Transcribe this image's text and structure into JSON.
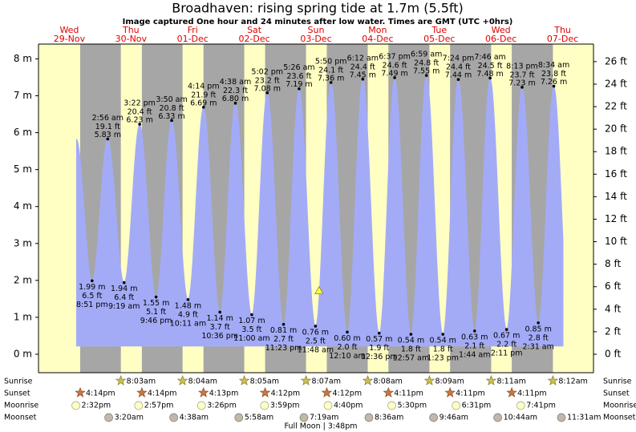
{
  "chart_data": {
    "type": "tide",
    "title": "Broadhaven: rising  spring tide at 1.7m (5.5ft)",
    "subtitle": "Image captured One hour and 24 minutes after low water. Times are GMT (UTC +0hrs)",
    "xlim": [
      0,
      9
    ],
    "ylim": [
      -0.5,
      8.4
    ],
    "yticks": [
      {
        "value": 0,
        "label": "0 m"
      },
      {
        "value": 1,
        "label": "1 m"
      },
      {
        "value": 2,
        "label": "2 m"
      },
      {
        "value": 3,
        "label": "3 m"
      },
      {
        "value": 4,
        "label": "4 m"
      },
      {
        "value": 5,
        "label": "5 m"
      },
      {
        "value": 6,
        "label": "6 m"
      },
      {
        "value": 7,
        "label": "7 m"
      },
      {
        "value": 8,
        "label": "8 m"
      }
    ],
    "y2lim": [
      -1.64,
      27.56
    ],
    "y2ticks": [
      {
        "value": 0,
        "label": "0 ft"
      },
      {
        "value": 2,
        "label": "2 ft"
      },
      {
        "value": 4,
        "label": "4 ft"
      },
      {
        "value": 6,
        "label": "6 ft"
      },
      {
        "value": 8,
        "label": "8 ft"
      },
      {
        "value": 10,
        "label": "10 ft"
      },
      {
        "value": 12,
        "label": "12 ft"
      },
      {
        "value": 14,
        "label": "14 ft"
      },
      {
        "value": 16,
        "label": "16 ft"
      },
      {
        "value": 18,
        "label": "18 ft"
      },
      {
        "value": 20,
        "label": "20 ft"
      },
      {
        "value": 22,
        "label": "22 ft"
      },
      {
        "value": 24,
        "label": "24 ft"
      },
      {
        "value": 26,
        "label": "26 ft"
      }
    ],
    "colors": {
      "tide": "#a3abf7",
      "day": "#ffffc4",
      "night": "#a6a6a6",
      "header": "#e00000"
    },
    "now": {
      "x": 4.55,
      "height": 1.7
    },
    "row_labels": {
      "sunrise": "Sunrise",
      "sunset": "Sunset",
      "moonrise": "Moonrise",
      "moonset": "Moonset"
    },
    "full_moon": "Full Moon | 3:48pm",
    "days": [
      {
        "weekday": "Wed",
        "date": "29-Nov",
        "sunrise": null,
        "sunset": "4:14pm",
        "moonrise": "2:32pm",
        "moonset": null,
        "tides": [
          {
            "type": "low",
            "time": "8:51 pm",
            "height": 1.99,
            "height_label": "1.99 m",
            "ft_label": "6.5 ft"
          }
        ]
      },
      {
        "weekday": "Thu",
        "date": "30-Nov",
        "sunrise": "8:03am",
        "sunset": "4:14pm",
        "moonrise": "2:57pm",
        "moonset": "3:20am",
        "tides": [
          {
            "type": "high",
            "time": "2:56 am",
            "height": 5.83,
            "height_label": "5.83 m",
            "ft_label": "19.1 ft"
          },
          {
            "type": "low",
            "time": "9:19 am",
            "height": 1.94,
            "height_label": "1.94 m",
            "ft_label": "6.4 ft"
          },
          {
            "type": "high",
            "time": "3:22 pm",
            "height": 6.23,
            "height_label": "6.23 m",
            "ft_label": "20.4 ft"
          },
          {
            "type": "low",
            "time": "9:46 pm",
            "height": 1.55,
            "height_label": "1.55 m",
            "ft_label": "5.1 ft"
          }
        ]
      },
      {
        "weekday": "Fri",
        "date": "01-Dec",
        "sunrise": "8:04am",
        "sunset": "4:13pm",
        "moonrise": "3:26pm",
        "moonset": "4:38am",
        "tides": [
          {
            "type": "high",
            "time": "3:50 am",
            "height": 6.33,
            "height_label": "6.33 m",
            "ft_label": "20.8 ft"
          },
          {
            "type": "low",
            "time": "10:11 am",
            "height": 1.48,
            "height_label": "1.48 m",
            "ft_label": "4.9 ft"
          },
          {
            "type": "high",
            "time": "4:14 pm",
            "height": 6.69,
            "height_label": "6.69 m",
            "ft_label": "21.9 ft"
          },
          {
            "type": "low",
            "time": "10:36 pm",
            "height": 1.14,
            "height_label": "1.14 m",
            "ft_label": "3.7 ft"
          }
        ]
      },
      {
        "weekday": "Sat",
        "date": "02-Dec",
        "sunrise": "8:05am",
        "sunset": "4:12pm",
        "moonrise": "3:59pm",
        "moonset": "5:58am",
        "tides": [
          {
            "type": "high",
            "time": "4:38 am",
            "height": 6.8,
            "height_label": "6.80 m",
            "ft_label": "22.3 ft"
          },
          {
            "type": "low",
            "time": "11:00 am",
            "height": 1.07,
            "height_label": "1.07 m",
            "ft_label": "3.5 ft"
          },
          {
            "type": "high",
            "time": "5:02 pm",
            "height": 7.08,
            "height_label": "7.08 m",
            "ft_label": "23.2 ft"
          },
          {
            "type": "low",
            "time": "11:23 pm",
            "height": 0.81,
            "height_label": "0.81 m",
            "ft_label": "2.7 ft"
          }
        ]
      },
      {
        "weekday": "Sun",
        "date": "03-Dec",
        "sunrise": "8:07am",
        "sunset": "4:12pm",
        "moonrise": "4:40pm",
        "moonset": "7:19am",
        "tides": [
          {
            "type": "high",
            "time": "5:26 am",
            "height": 7.19,
            "height_label": "7.19 m",
            "ft_label": "23.6 ft"
          },
          {
            "type": "low",
            "time": "11:48 am",
            "height": 0.76,
            "height_label": "0.76 m",
            "ft_label": "2.5 ft"
          },
          {
            "type": "high",
            "time": "5:50 pm",
            "height": 7.36,
            "height_label": "7.36 m",
            "ft_label": "24.1 ft"
          }
        ]
      },
      {
        "weekday": "Mon",
        "date": "04-Dec",
        "sunrise": "8:08am",
        "sunset": "4:11pm",
        "moonrise": "5:30pm",
        "moonset": "8:36am",
        "tides": [
          {
            "type": "low",
            "time": "12:10 am",
            "height": 0.6,
            "height_label": "0.60 m",
            "ft_label": "2.0 ft"
          },
          {
            "type": "high",
            "time": "6:12 am",
            "height": 7.45,
            "height_label": "7.45 m",
            "ft_label": "24.4 ft"
          },
          {
            "type": "low",
            "time": "12:36 pm",
            "height": 0.57,
            "height_label": "0.57 m",
            "ft_label": "1.9 ft"
          },
          {
            "type": "high",
            "time": "6:37 pm",
            "height": 7.49,
            "height_label": "7.49 m",
            "ft_label": "24.6 ft"
          }
        ]
      },
      {
        "weekday": "Tue",
        "date": "05-Dec",
        "sunrise": "8:09am",
        "sunset": "4:11pm",
        "moonrise": "6:31pm",
        "moonset": "9:46am",
        "tides": [
          {
            "type": "low",
            "time": "12:57 am",
            "height": 0.54,
            "height_label": "0.54 m",
            "ft_label": "1.8 ft"
          },
          {
            "type": "high",
            "time": "6:59 am",
            "height": 7.55,
            "height_label": "7.55 m",
            "ft_label": "24.8 ft"
          },
          {
            "type": "low",
            "time": "1:23 pm",
            "height": 0.54,
            "height_label": "0.54 m",
            "ft_label": "1.8 ft"
          },
          {
            "type": "high",
            "time": "7:24 pm",
            "height": 7.44,
            "height_label": "7.44 m",
            "ft_label": "24.4 ft"
          }
        ]
      },
      {
        "weekday": "Wed",
        "date": "06-Dec",
        "sunrise": "8:11am",
        "sunset": "4:11pm",
        "moonrise": "7:41pm",
        "moonset": "10:44am",
        "tides": [
          {
            "type": "low",
            "time": "1:44 am",
            "height": 0.63,
            "height_label": "0.63 m",
            "ft_label": "2.1 ft"
          },
          {
            "type": "high",
            "time": "7:46 am",
            "height": 7.48,
            "height_label": "7.48 m",
            "ft_label": "24.5 ft"
          },
          {
            "type": "low",
            "time": "2:11 pm",
            "height": 0.67,
            "height_label": "0.67 m",
            "ft_label": "2.2 ft"
          },
          {
            "type": "high",
            "time": "8:13 pm",
            "height": 7.23,
            "height_label": "7.23 m",
            "ft_label": "23.7 ft"
          }
        ]
      },
      {
        "weekday": "Thu",
        "date": "07-Dec",
        "sunrise": "8:12am",
        "sunset": null,
        "moonrise": null,
        "moonset": "11:31am",
        "tides": [
          {
            "type": "low",
            "time": "2:31 am",
            "height": 0.85,
            "height_label": "0.85 m",
            "ft_label": "2.8 ft"
          },
          {
            "type": "high",
            "time": "8:34 am",
            "height": 7.26,
            "height_label": "7.26 m",
            "ft_label": "23.8 ft"
          }
        ]
      }
    ]
  }
}
